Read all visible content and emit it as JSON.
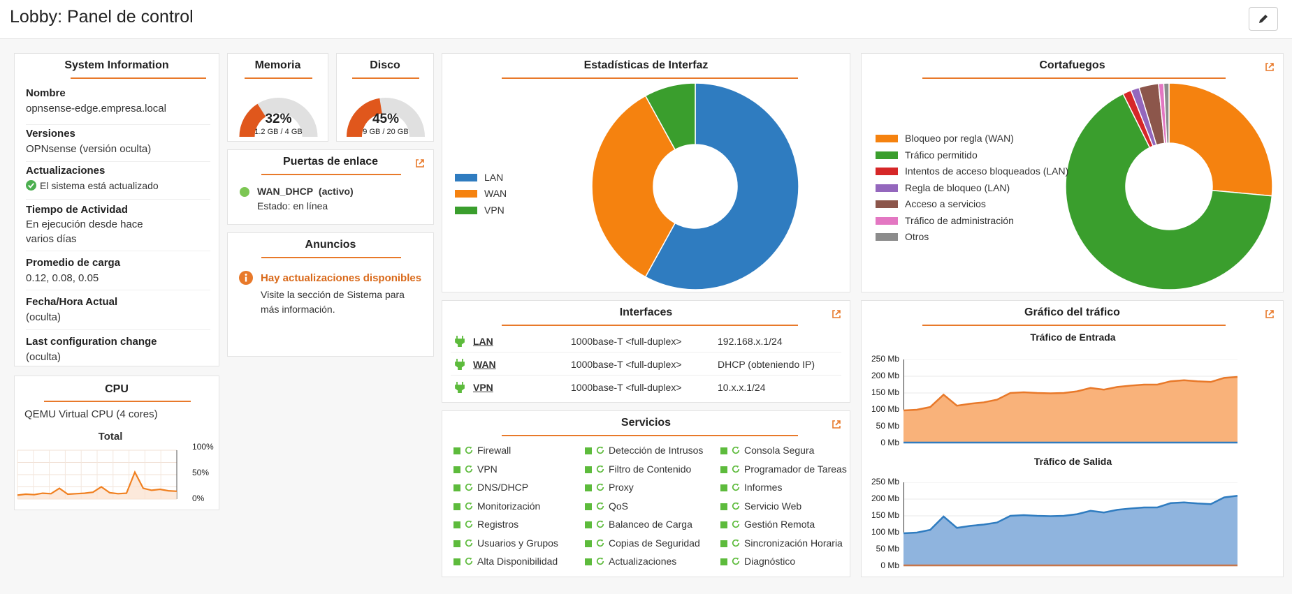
{
  "header": {
    "title": "Lobby: Panel de control"
  },
  "system_info": {
    "title": "System Information",
    "rows": [
      {
        "label": "Nombre",
        "value": "opnsense-edge.empresa.local"
      },
      {
        "label": "Versiones",
        "value": "OPNsense (versión oculta)"
      },
      {
        "label": "Actualizaciones",
        "value": "El sistema está actualizado"
      },
      {
        "label": "Tiempo de Actividad",
        "value_line1": "En ejecución desde hace",
        "value_line2": "varios días"
      },
      {
        "label": "Promedio de carga",
        "value": "0.12, 0.08, 0.05"
      },
      {
        "label": "Fecha/Hora Actual",
        "value": "(oculta)"
      },
      {
        "label": "Last configuration change",
        "value": "(oculta)"
      }
    ]
  },
  "cpu": {
    "title": "CPU",
    "model": "QEMU Virtual CPU (4 cores)",
    "chart_title": "Total",
    "ticks": [
      "100%",
      "50%",
      "0%"
    ],
    "accent": "#f08020"
  },
  "memoria": {
    "title": "Memoria",
    "percent_label": "32%",
    "detail": "1.2 GB / 4 GB",
    "value": 0.32
  },
  "disco": {
    "title": "Disco",
    "percent_label": "45%",
    "detail": "9 GB / 20 GB",
    "value": 0.45
  },
  "gateways": {
    "title": "Puertas de enlace",
    "name": "WAN_DHCP",
    "state_tag": "(activo)",
    "status": "Estado: en línea"
  },
  "announcements": {
    "title": "Anuncios",
    "heading": "Hay actualizaciones disponibles",
    "line1": "Visite la sección de Sistema para",
    "line2": "más información."
  },
  "interface_stats": {
    "title": "Estadísticas de Interfaz",
    "legend": [
      {
        "label": "LAN",
        "color": "#2f7cc0"
      },
      {
        "label": "WAN",
        "color": "#f5820f"
      },
      {
        "label": "VPN",
        "color": "#3a9e2d"
      }
    ]
  },
  "interfaces": {
    "title": "Interfaces",
    "rows": [
      {
        "name": "LAN",
        "media": "1000base-T <full-duplex>",
        "ip": "192.168.x.1/24"
      },
      {
        "name": "WAN",
        "media": "1000base-T <full-duplex>",
        "ip": "DHCP (obteniendo IP)"
      },
      {
        "name": "VPN",
        "media": "1000base-T <full-duplex>",
        "ip": "10.x.x.1/24"
      }
    ]
  },
  "services": {
    "title": "Servicios",
    "col1": [
      "Firewall",
      "VPN",
      "DNS/DHCP",
      "Monitorización",
      "Registros",
      "Usuarios y Grupos",
      "Alta Disponibilidad"
    ],
    "col2": [
      "Detección de Intrusos",
      "Filtro de Contenido",
      "Proxy",
      "QoS",
      "Balanceo de Carga",
      "Copias de Seguridad",
      "Actualizaciones"
    ],
    "col3": [
      "Consola Segura",
      "Programador de Tareas",
      "Informes",
      "Servicio Web",
      "Gestión Remota",
      "Sincronización Horaria",
      "Diagnóstico"
    ]
  },
  "firewall": {
    "title": "Cortafuegos",
    "legend": [
      {
        "label": "Bloqueo por regla (WAN)",
        "color": "#f5820f"
      },
      {
        "label": "Tráfico permitido",
        "color": "#3a9e2d"
      },
      {
        "label": "Intentos de acceso bloqueados (LAN)",
        "color": "#d62728"
      },
      {
        "label": "Regla de bloqueo (LAN)",
        "color": "#9467bd"
      },
      {
        "label": "Acceso a servicios",
        "color": "#8c564b"
      },
      {
        "label": "Tráfico de administración",
        "color": "#e377c2"
      },
      {
        "label": "Otros",
        "color": "#8c8c8c"
      }
    ]
  },
  "traffic": {
    "title": "Gráfico del tráfico",
    "in_title": "Tráfico de Entrada",
    "out_title": "Tráfico de Salida",
    "ticks": [
      "250 Mb",
      "200 Mb",
      "150 Mb",
      "100 Mb",
      "50 Mb",
      "0 Mb"
    ]
  },
  "chart_data": [
    {
      "type": "pie",
      "categories": [
        "LAN",
        "WAN",
        "VPN"
      ],
      "values": [
        58,
        34,
        8
      ]
    },
    {
      "type": "pie",
      "categories": [
        "Bloqueo por regla (WAN)",
        "Tráfico permitido",
        "Intentos de acceso bloqueados (LAN)",
        "Regla de bloqueo (LAN)",
        "Acceso a servicios",
        "Tráfico de administración",
        "Otros"
      ],
      "values": [
        26,
        65,
        1.3,
        1.3,
        3,
        0.8,
        0.8
      ]
    },
    {
      "type": "area",
      "title": "Tráfico de Entrada",
      "ylim": [
        0,
        250
      ],
      "series": [
        {
          "values": [
            98,
            100,
            108,
            145,
            112,
            118,
            122,
            130,
            150,
            152,
            150,
            149,
            150,
            155,
            165,
            160,
            168,
            172,
            175,
            175,
            185,
            188,
            185,
            183,
            195,
            198
          ]
        },
        {
          "values": [
            2,
            2,
            2,
            2,
            2,
            2,
            2,
            2,
            2,
            2,
            2,
            2,
            2,
            2,
            2,
            2,
            2,
            2,
            2,
            2,
            2,
            2,
            2,
            2,
            2,
            2
          ]
        }
      ]
    },
    {
      "type": "area",
      "title": "Tráfico de Salida",
      "ylim": [
        0,
        250
      ],
      "series": [
        {
          "values": [
            98,
            100,
            108,
            148,
            114,
            120,
            124,
            130,
            150,
            152,
            150,
            149,
            150,
            155,
            165,
            160,
            168,
            172,
            175,
            175,
            188,
            190,
            187,
            185,
            205,
            210
          ]
        },
        {
          "values": [
            2,
            2,
            2,
            2,
            2,
            2,
            2,
            2,
            2,
            2,
            2,
            2,
            2,
            2,
            2,
            2,
            2,
            2,
            2,
            2,
            2,
            2,
            2,
            2,
            2,
            2
          ]
        }
      ]
    },
    {
      "type": "line",
      "title": "Total",
      "ylim": [
        0,
        100
      ],
      "series": [
        {
          "values": [
            8,
            10,
            9,
            12,
            11,
            22,
            10,
            11,
            12,
            14,
            25,
            13,
            11,
            12,
            55,
            22,
            18,
            20,
            17,
            16
          ]
        }
      ]
    }
  ]
}
